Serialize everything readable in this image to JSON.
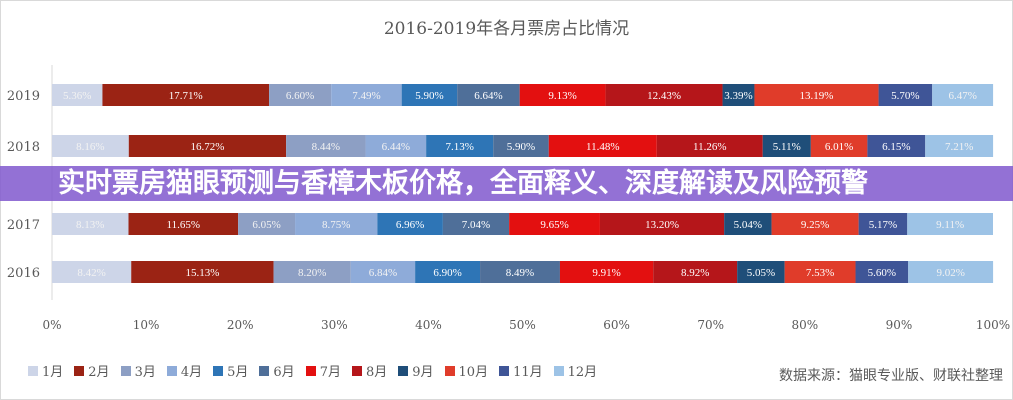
{
  "chart_data": {
    "type": "bar",
    "orientation": "horizontal",
    "stacked": "percent",
    "title": "2016-2019年各月票房占比情况",
    "categories": [
      "2019",
      "2018",
      "2017",
      "2016"
    ],
    "xlim": [
      0,
      100
    ],
    "x_ticks": [
      "0%",
      "10%",
      "20%",
      "30%",
      "40%",
      "50%",
      "60%",
      "70%",
      "80%",
      "90%",
      "100%"
    ],
    "legend_position": "bottom-left",
    "series": [
      {
        "name": "1月",
        "color": "#cdd5e8",
        "values": [
          5.36,
          8.16,
          8.13,
          8.42
        ]
      },
      {
        "name": "2月",
        "color": "#9b2314",
        "values": [
          17.71,
          16.72,
          11.65,
          15.13
        ]
      },
      {
        "name": "3月",
        "color": "#8d9fc4",
        "values": [
          6.6,
          8.44,
          6.05,
          8.2
        ]
      },
      {
        "name": "4月",
        "color": "#8eabd9",
        "values": [
          7.49,
          6.44,
          8.75,
          6.84
        ]
      },
      {
        "name": "5月",
        "color": "#2e75b6",
        "values": [
          5.9,
          7.13,
          6.96,
          6.9
        ]
      },
      {
        "name": "6月",
        "color": "#4f6f99",
        "values": [
          6.64,
          5.9,
          7.04,
          8.49
        ]
      },
      {
        "name": "7月",
        "color": "#e31010",
        "values": [
          9.13,
          11.48,
          9.65,
          9.91
        ]
      },
      {
        "name": "8月",
        "color": "#b5161a",
        "values": [
          12.43,
          11.26,
          13.2,
          8.92
        ]
      },
      {
        "name": "9月",
        "color": "#1f4e79",
        "values": [
          3.39,
          5.11,
          5.04,
          5.05
        ]
      },
      {
        "name": "10月",
        "color": "#e03c2a",
        "values": [
          13.19,
          6.01,
          9.25,
          7.53
        ]
      },
      {
        "name": "11月",
        "color": "#3f5597",
        "values": [
          5.7,
          6.15,
          5.17,
          5.6
        ]
      },
      {
        "name": "12月",
        "color": "#9dc3e6",
        "values": [
          6.47,
          7.21,
          9.11,
          9.02
        ]
      }
    ]
  },
  "source": "数据来源：猫眼专业版、财联社整理",
  "banner": {
    "text": "实时票房猫眼预测与香樟木板价格，全面释义、深度解读及风险预警"
  }
}
